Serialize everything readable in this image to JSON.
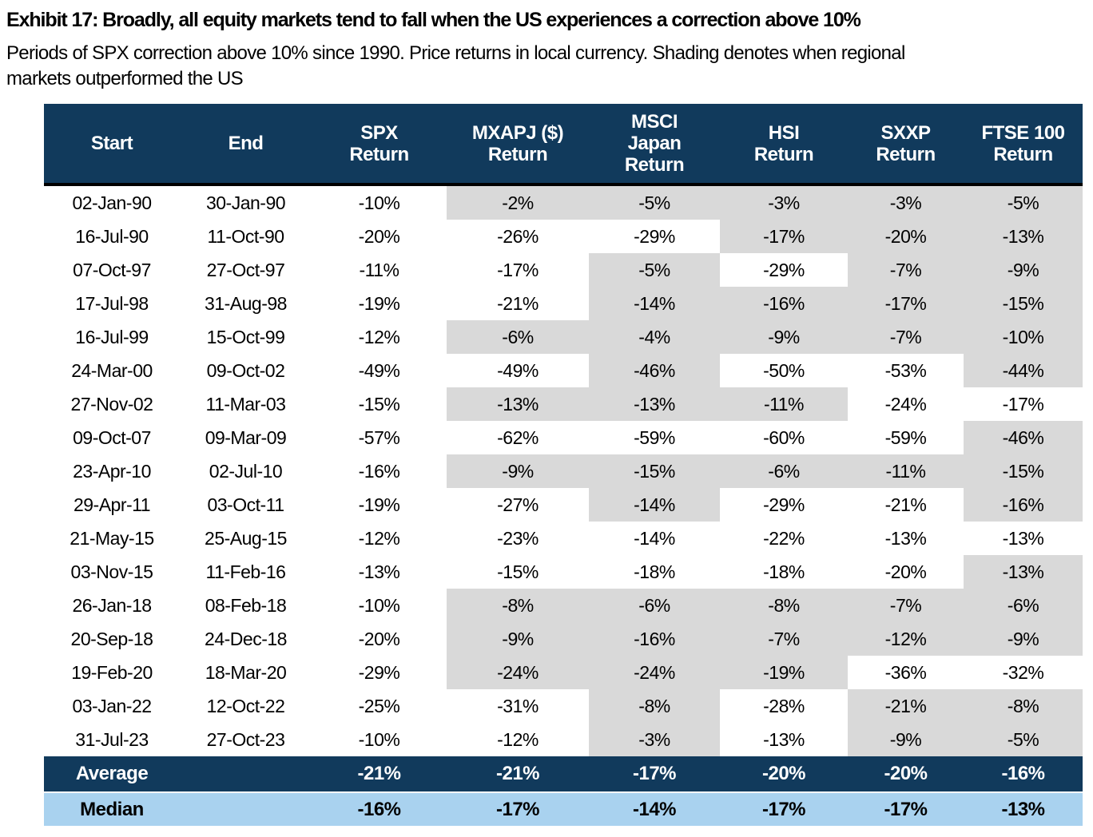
{
  "colors": {
    "header_navy": "#113a5c",
    "outperform_shading_gray": "#d9d9d9",
    "median_row_blue": "#a9d2ef",
    "header_text": "#ffffff",
    "body_text": "#000000"
  },
  "chart_data": {
    "type": "table",
    "title": "Exhibit 17: Broadly, all equity markets tend to fall when the US experiences a correction above 10%",
    "subtitle_line1": "Periods of SPX correction above 10% since 1990. Price returns in local currency. Shading denotes when regional",
    "subtitle_line2": "markets outperformed the US",
    "shading_meaning": "Gray-shaded cells mark periods when that regional market outperformed the US (SPX)",
    "columns": [
      {
        "id": "start",
        "label_lines": [
          "Start"
        ]
      },
      {
        "id": "end",
        "label_lines": [
          "End"
        ]
      },
      {
        "id": "spx",
        "label_lines": [
          "SPX",
          "Return"
        ]
      },
      {
        "id": "mxapj",
        "label_lines": [
          "MXAPJ ($)",
          "Return"
        ]
      },
      {
        "id": "msci_japan",
        "label_lines": [
          "MSCI",
          "Japan",
          "Return"
        ]
      },
      {
        "id": "hsi",
        "label_lines": [
          "HSI",
          "Return"
        ]
      },
      {
        "id": "sxxp",
        "label_lines": [
          "SXXP",
          "Return"
        ]
      },
      {
        "id": "ftse100",
        "label_lines": [
          "FTSE 100",
          "Return"
        ]
      }
    ],
    "rows": [
      {
        "start": "02-Jan-90",
        "end": "30-Jan-90",
        "spx": "-10%",
        "regional": [
          {
            "v": "-2%",
            "shaded": true
          },
          {
            "v": "-5%",
            "shaded": true
          },
          {
            "v": "-3%",
            "shaded": true
          },
          {
            "v": "-3%",
            "shaded": true
          },
          {
            "v": "-5%",
            "shaded": true
          }
        ]
      },
      {
        "start": "16-Jul-90",
        "end": "11-Oct-90",
        "spx": "-20%",
        "regional": [
          {
            "v": "-26%",
            "shaded": false
          },
          {
            "v": "-29%",
            "shaded": false
          },
          {
            "v": "-17%",
            "shaded": true
          },
          {
            "v": "-20%",
            "shaded": true
          },
          {
            "v": "-13%",
            "shaded": true
          }
        ]
      },
      {
        "start": "07-Oct-97",
        "end": "27-Oct-97",
        "spx": "-11%",
        "regional": [
          {
            "v": "-17%",
            "shaded": false
          },
          {
            "v": "-5%",
            "shaded": true
          },
          {
            "v": "-29%",
            "shaded": false
          },
          {
            "v": "-7%",
            "shaded": true
          },
          {
            "v": "-9%",
            "shaded": true
          }
        ]
      },
      {
        "start": "17-Jul-98",
        "end": "31-Aug-98",
        "spx": "-19%",
        "regional": [
          {
            "v": "-21%",
            "shaded": false
          },
          {
            "v": "-14%",
            "shaded": true
          },
          {
            "v": "-16%",
            "shaded": true
          },
          {
            "v": "-17%",
            "shaded": true
          },
          {
            "v": "-15%",
            "shaded": true
          }
        ]
      },
      {
        "start": "16-Jul-99",
        "end": "15-Oct-99",
        "spx": "-12%",
        "regional": [
          {
            "v": "-6%",
            "shaded": true
          },
          {
            "v": "-4%",
            "shaded": true
          },
          {
            "v": "-9%",
            "shaded": true
          },
          {
            "v": "-7%",
            "shaded": true
          },
          {
            "v": "-10%",
            "shaded": true
          }
        ]
      },
      {
        "start": "24-Mar-00",
        "end": "09-Oct-02",
        "spx": "-49%",
        "regional": [
          {
            "v": "-49%",
            "shaded": false
          },
          {
            "v": "-46%",
            "shaded": true
          },
          {
            "v": "-50%",
            "shaded": false
          },
          {
            "v": "-53%",
            "shaded": false
          },
          {
            "v": "-44%",
            "shaded": true
          }
        ]
      },
      {
        "start": "27-Nov-02",
        "end": "11-Mar-03",
        "spx": "-15%",
        "regional": [
          {
            "v": "-13%",
            "shaded": true
          },
          {
            "v": "-13%",
            "shaded": true
          },
          {
            "v": "-11%",
            "shaded": true
          },
          {
            "v": "-24%",
            "shaded": false
          },
          {
            "v": "-17%",
            "shaded": false
          }
        ]
      },
      {
        "start": "09-Oct-07",
        "end": "09-Mar-09",
        "spx": "-57%",
        "regional": [
          {
            "v": "-62%",
            "shaded": false
          },
          {
            "v": "-59%",
            "shaded": false
          },
          {
            "v": "-60%",
            "shaded": false
          },
          {
            "v": "-59%",
            "shaded": false
          },
          {
            "v": "-46%",
            "shaded": true
          }
        ]
      },
      {
        "start": "23-Apr-10",
        "end": "02-Jul-10",
        "spx": "-16%",
        "regional": [
          {
            "v": "-9%",
            "shaded": true
          },
          {
            "v": "-15%",
            "shaded": true
          },
          {
            "v": "-6%",
            "shaded": true
          },
          {
            "v": "-11%",
            "shaded": true
          },
          {
            "v": "-15%",
            "shaded": true
          }
        ]
      },
      {
        "start": "29-Apr-11",
        "end": "03-Oct-11",
        "spx": "-19%",
        "regional": [
          {
            "v": "-27%",
            "shaded": false
          },
          {
            "v": "-14%",
            "shaded": true
          },
          {
            "v": "-29%",
            "shaded": false
          },
          {
            "v": "-21%",
            "shaded": false
          },
          {
            "v": "-16%",
            "shaded": true
          }
        ]
      },
      {
        "start": "21-May-15",
        "end": "25-Aug-15",
        "spx": "-12%",
        "regional": [
          {
            "v": "-23%",
            "shaded": false
          },
          {
            "v": "-14%",
            "shaded": false
          },
          {
            "v": "-22%",
            "shaded": false
          },
          {
            "v": "-13%",
            "shaded": false
          },
          {
            "v": "-13%",
            "shaded": false
          }
        ]
      },
      {
        "start": "03-Nov-15",
        "end": "11-Feb-16",
        "spx": "-13%",
        "regional": [
          {
            "v": "-15%",
            "shaded": false
          },
          {
            "v": "-18%",
            "shaded": false
          },
          {
            "v": "-18%",
            "shaded": false
          },
          {
            "v": "-20%",
            "shaded": false
          },
          {
            "v": "-13%",
            "shaded": true
          }
        ]
      },
      {
        "start": "26-Jan-18",
        "end": "08-Feb-18",
        "spx": "-10%",
        "regional": [
          {
            "v": "-8%",
            "shaded": true
          },
          {
            "v": "-6%",
            "shaded": true
          },
          {
            "v": "-8%",
            "shaded": true
          },
          {
            "v": "-7%",
            "shaded": true
          },
          {
            "v": "-6%",
            "shaded": true
          }
        ]
      },
      {
        "start": "20-Sep-18",
        "end": "24-Dec-18",
        "spx": "-20%",
        "regional": [
          {
            "v": "-9%",
            "shaded": true
          },
          {
            "v": "-16%",
            "shaded": true
          },
          {
            "v": "-7%",
            "shaded": true
          },
          {
            "v": "-12%",
            "shaded": true
          },
          {
            "v": "-9%",
            "shaded": true
          }
        ]
      },
      {
        "start": "19-Feb-20",
        "end": "18-Mar-20",
        "spx": "-29%",
        "regional": [
          {
            "v": "-24%",
            "shaded": true
          },
          {
            "v": "-24%",
            "shaded": true
          },
          {
            "v": "-19%",
            "shaded": true
          },
          {
            "v": "-36%",
            "shaded": false
          },
          {
            "v": "-32%",
            "shaded": false
          }
        ]
      },
      {
        "start": "03-Jan-22",
        "end": "12-Oct-22",
        "spx": "-25%",
        "regional": [
          {
            "v": "-31%",
            "shaded": false
          },
          {
            "v": "-8%",
            "shaded": true
          },
          {
            "v": "-28%",
            "shaded": false
          },
          {
            "v": "-21%",
            "shaded": true
          },
          {
            "v": "-8%",
            "shaded": true
          }
        ]
      },
      {
        "start": "31-Jul-23",
        "end": "27-Oct-23",
        "spx": "-10%",
        "regional": [
          {
            "v": "-12%",
            "shaded": false
          },
          {
            "v": "-3%",
            "shaded": true
          },
          {
            "v": "-13%",
            "shaded": false
          },
          {
            "v": "-9%",
            "shaded": true
          },
          {
            "v": "-5%",
            "shaded": true
          }
        ]
      }
    ],
    "summary": [
      {
        "label": "Average",
        "style": "navy",
        "values": [
          "-21%",
          "-21%",
          "-17%",
          "-20%",
          "-20%",
          "-16%"
        ]
      },
      {
        "label": "Median",
        "style": "blue",
        "values": [
          "-16%",
          "-17%",
          "-14%",
          "-17%",
          "-17%",
          "-13%"
        ]
      }
    ]
  }
}
